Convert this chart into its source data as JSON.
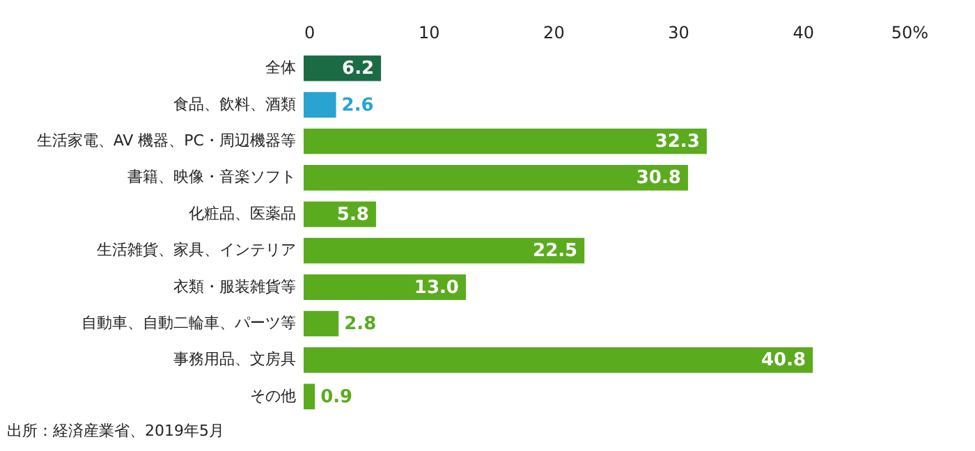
{
  "chart_data": {
    "type": "bar",
    "orientation": "horizontal",
    "categories": [
      "全体",
      "食品、飲料、酒類",
      "生活家電、AV 機器、PC・周辺機器等",
      "書籍、映像・音楽ソフト",
      "化粧品、医薬品",
      "生活雑貨、家具、インテリア",
      "衣類・服装雑貨等",
      "自動車、自動二輪車、パーツ等",
      "事務用品、文房具",
      "その他"
    ],
    "values": [
      6.2,
      2.6,
      32.3,
      30.8,
      5.8,
      22.5,
      13.0,
      2.8,
      40.8,
      0.9
    ],
    "value_labels": [
      "6.2",
      "2.6",
      "32.3",
      "30.8",
      "5.8",
      "22.5",
      "13.0",
      "2.8",
      "40.8",
      "0.9"
    ],
    "colors": [
      "#1b6b45",
      "#29a3d1",
      "#5aab1e",
      "#5aab1e",
      "#5aab1e",
      "#5aab1e",
      "#5aab1e",
      "#5aab1e",
      "#5aab1e",
      "#5aab1e"
    ],
    "xlim": [
      0,
      50
    ],
    "xticks": [
      0,
      10,
      20,
      30,
      40,
      {
        "value": 50,
        "label": "50%"
      }
    ],
    "grid": false,
    "annotations": [
      "出所：経済産業省、2019年5月"
    ]
  }
}
